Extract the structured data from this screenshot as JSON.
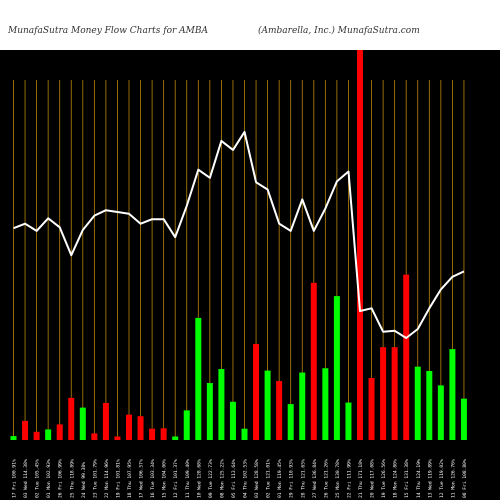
{
  "header": {
    "left": "MunafaSutra  Money Flow  Charts for AMBA",
    "right": "(Ambarella, Inc.) MunafaSutra.com"
  },
  "colors": {
    "background": "#000000",
    "grid": "#b8860b",
    "up": "#00ff00",
    "down": "#ff0000",
    "price_line": "#ffffff"
  },
  "chart_data": {
    "type": "bar",
    "title": "",
    "grid": true,
    "bars": [
      {
        "label": "17 Fri 100.91%",
        "direction": "up",
        "value": 1.0
      },
      {
        "label": "03 Wed 114.38%",
        "direction": "down",
        "value": 4.9
      },
      {
        "label": "02 Tue 105.45%",
        "direction": "down",
        "value": 2.1
      },
      {
        "label": "01 Mon 102.93%",
        "direction": "up",
        "value": 2.7
      },
      {
        "label": "26 Fri 106.99%",
        "direction": "down",
        "value": 4.0
      },
      {
        "label": "25 Thu 118.89%",
        "direction": "down",
        "value": 10.8
      },
      {
        "label": "24 Wed 99.38%",
        "direction": "up",
        "value": 8.3
      },
      {
        "label": "23 Tue 101.79%",
        "direction": "down",
        "value": 1.7
      },
      {
        "label": "22 Mon 114.96%",
        "direction": "down",
        "value": 9.5
      },
      {
        "label": "19 Fri 101.81%",
        "direction": "down",
        "value": 0.9
      },
      {
        "label": "18 Thu 107.95%",
        "direction": "down",
        "value": 6.5
      },
      {
        "label": "17 Wed 106.57%",
        "direction": "down",
        "value": 6.1
      },
      {
        "label": "16 Tue 103.34%",
        "direction": "down",
        "value": 2.9
      },
      {
        "label": "15 Mon 104.00%",
        "direction": "down",
        "value": 3.0
      },
      {
        "label": "12 Fri 101.37%",
        "direction": "up",
        "value": 0.9
      },
      {
        "label": "11 Thu 109.40%",
        "direction": "up",
        "value": 7.6
      },
      {
        "label": "10 Wed 128.68%",
        "direction": "up",
        "value": 31.3
      },
      {
        "label": "09 Tue 122.73%",
        "direction": "up",
        "value": 14.6
      },
      {
        "label": "08 Mon 125.22%",
        "direction": "up",
        "value": 18.2
      },
      {
        "label": "05 Fri 113.64%",
        "direction": "up",
        "value": 9.8
      },
      {
        "label": "04 Thu 102.53%",
        "direction": "up",
        "value": 2.9
      },
      {
        "label": "03 Wed 128.58%",
        "direction": "down",
        "value": 24.6
      },
      {
        "label": "02 Tue 121.01%",
        "direction": "up",
        "value": 17.8
      },
      {
        "label": "01 Mon 119.45%",
        "direction": "down",
        "value": 15.1
      },
      {
        "label": "29 Fri 110.93%",
        "direction": "up",
        "value": 9.2
      },
      {
        "label": "28 Thu 121.65%",
        "direction": "up",
        "value": 17.3
      },
      {
        "label": "27 Wed 136.84%",
        "direction": "down",
        "value": 40.3
      },
      {
        "label": "26 Tue 121.26%",
        "direction": "up",
        "value": 18.4
      },
      {
        "label": "25 Mon 130.78%",
        "direction": "up",
        "value": 36.9
      },
      {
        "label": "22 Fri 111.99%",
        "direction": "up",
        "value": 9.6
      },
      {
        "label": "21 Thu 171.18%",
        "direction": "down",
        "value": 100.0
      },
      {
        "label": "20 Wed 117.08%",
        "direction": "down",
        "value": 15.9
      },
      {
        "label": "19 Tue 126.56%",
        "direction": "down",
        "value": 23.8
      },
      {
        "label": "18 Mon 124.80%",
        "direction": "down",
        "value": 23.8
      },
      {
        "label": "15 Fri 131.38%",
        "direction": "down",
        "value": 42.4
      },
      {
        "label": "14 Thu 124.19%",
        "direction": "up",
        "value": 18.8
      },
      {
        "label": "13 Wed 119.89%",
        "direction": "up",
        "value": 17.7
      },
      {
        "label": "12 Tue 119.02%",
        "direction": "up",
        "value": 14.0
      },
      {
        "label": "11 Mon 126.76%",
        "direction": "up",
        "value": 23.3
      },
      {
        "label": "08 Fri 108.80%",
        "direction": "up",
        "value": 10.6
      }
    ],
    "price_line": [
      50.2,
      50.7,
      49.9,
      51.3,
      50.3,
      47.2,
      50.0,
      51.6,
      52.2,
      52.0,
      51.8,
      50.7,
      51.2,
      51.2,
      49.2,
      52.7,
      56.7,
      55.8,
      59.9,
      58.9,
      60.9,
      55.3,
      54.5,
      50.7,
      49.9,
      53.4,
      49.9,
      52.4,
      55.4,
      56.5,
      41.0,
      41.3,
      38.7,
      38.8,
      38.0,
      39.0,
      41.3,
      43.4,
      44.8,
      45.4
    ],
    "price_range": [
      20,
      70
    ]
  }
}
